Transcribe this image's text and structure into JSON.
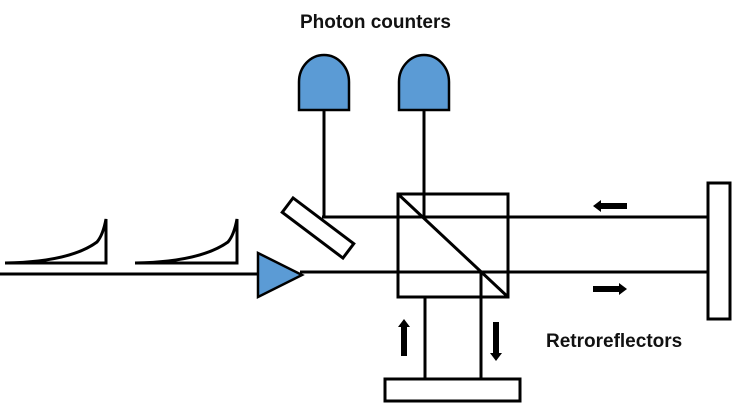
{
  "labels": {
    "photon_counters": "Photon counters",
    "retroreflectors": "Retroreflectors"
  },
  "colors": {
    "detector_fill": "#5B9BD5",
    "stroke": "#000000",
    "background": "#ffffff"
  },
  "components": {
    "detectors": 2,
    "beam_splitter": "cube",
    "input_pulses": 2
  }
}
